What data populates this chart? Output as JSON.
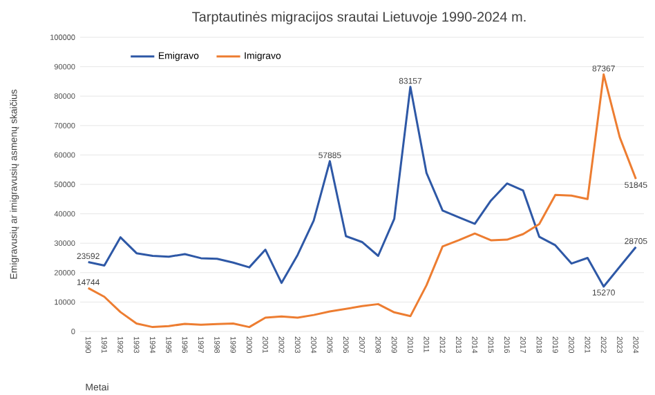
{
  "chart_data": {
    "type": "line",
    "title": "Tarptautinės migracijos srautai Lietuvoje 1990-2024 m.",
    "xlabel": "Metai",
    "ylabel": "Emigravusių ar imigravusių asmenų skaičius",
    "categories": [
      "1990",
      "1991",
      "1992",
      "1993",
      "1994",
      "1995",
      "1996",
      "1997",
      "1998",
      "1999",
      "2000",
      "2001",
      "2002",
      "2003",
      "2004",
      "2005",
      "2006",
      "2007",
      "2008",
      "2009",
      "2010",
      "2011",
      "2012",
      "2013",
      "2014",
      "2015",
      "2016",
      "2017",
      "2018",
      "2019",
      "2020",
      "2021",
      "2022",
      "2023",
      "2024"
    ],
    "series": [
      {
        "name": "Emigravo",
        "color": "#2e58a6",
        "values": [
          23592,
          22400,
          32000,
          26600,
          25700,
          25400,
          26300,
          24900,
          24700,
          23400,
          21800,
          27800,
          16500,
          26000,
          37700,
          57885,
          32400,
          30400,
          25700,
          38300,
          83157,
          53900,
          41100,
          38800,
          36600,
          44500,
          50300,
          47900,
          32200,
          29300,
          23100,
          25000,
          15270,
          22000,
          28705
        ],
        "value_labels": [
          "23592",
          null,
          null,
          null,
          null,
          null,
          null,
          null,
          null,
          null,
          null,
          null,
          null,
          null,
          null,
          "57885",
          null,
          null,
          null,
          null,
          "83157",
          null,
          null,
          null,
          null,
          null,
          null,
          null,
          null,
          null,
          null,
          null,
          "15270",
          null,
          "28705"
        ]
      },
      {
        "name": "Imigravo",
        "color": "#ed7d31",
        "values": [
          14744,
          11800,
          6600,
          2700,
          1500,
          1800,
          2600,
          2300,
          2500,
          2700,
          1500,
          4700,
          5100,
          4700,
          5600,
          6800,
          7700,
          8600,
          9300,
          6500,
          5200,
          15700,
          28900,
          31000,
          33300,
          31000,
          31200,
          33100,
          36500,
          46400,
          46200,
          45000,
          87367,
          66000,
          51845
        ],
        "value_labels": [
          "14744",
          null,
          null,
          null,
          null,
          null,
          null,
          null,
          null,
          null,
          null,
          null,
          null,
          null,
          null,
          null,
          null,
          null,
          null,
          null,
          null,
          null,
          null,
          null,
          null,
          null,
          null,
          null,
          null,
          null,
          null,
          null,
          "87367",
          null,
          "51845"
        ]
      }
    ],
    "ylim": [
      0,
      100000
    ],
    "yticks": [
      0,
      10000,
      20000,
      30000,
      40000,
      50000,
      60000,
      70000,
      80000,
      90000,
      100000
    ],
    "grid": "y",
    "legend": "top left",
    "marker": "none",
    "line_style": "solid"
  }
}
